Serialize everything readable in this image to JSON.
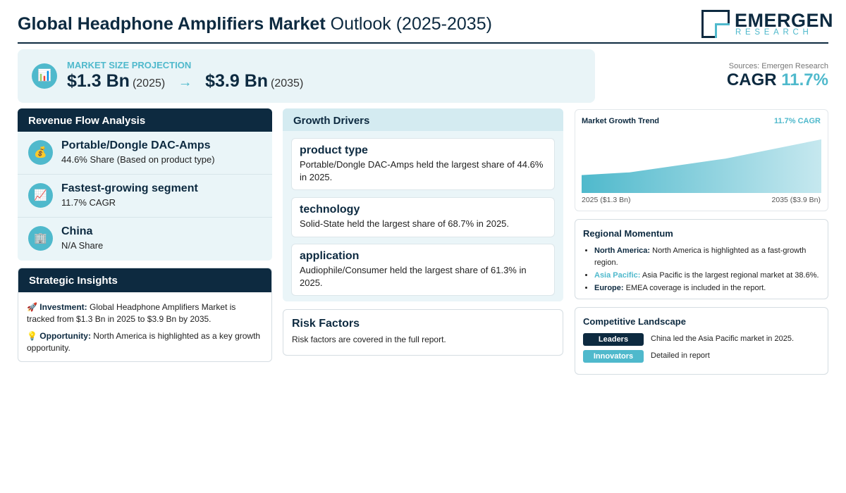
{
  "header": {
    "title_bold": "Global Headphone Amplifiers Market",
    "title_rest": "Outlook (2025-2035)",
    "logo_name": "EMERGEN",
    "logo_sub": "RESEARCH"
  },
  "projection": {
    "label": "MARKET SIZE PROJECTION",
    "icon": "bar-chart-icon",
    "start_value": "$1.3 Bn",
    "start_year": "(2025)",
    "arrow": "→",
    "end_value": "$3.9 Bn",
    "end_year": "(2035)"
  },
  "sources": "Sources: Emergen Research",
  "cagr": {
    "label": "CAGR",
    "value": "11.7%"
  },
  "revenue_flow": {
    "title": "Revenue Flow Analysis",
    "items": [
      {
        "icon": "money-bag-icon",
        "glyph": "💰",
        "title": "Portable/Dongle DAC-Amps",
        "sub": "44.6% Share (Based on product type)"
      },
      {
        "icon": "trend-up-icon",
        "glyph": "📈",
        "title": "Fastest-growing segment",
        "sub": "11.7% CAGR"
      },
      {
        "icon": "building-icon",
        "glyph": "🏢",
        "title": "China",
        "sub": "N/A Share"
      }
    ]
  },
  "strategic": {
    "title": "Strategic Insights",
    "items": [
      {
        "glyph": "🚀",
        "label": "Investment:",
        "text": "Global Headphone Amplifiers Market is tracked from $1.3 Bn in 2025 to $3.9 Bn by 2035."
      },
      {
        "glyph": "💡",
        "label": "Opportunity:",
        "text": "North America is highlighted as a key growth opportunity."
      }
    ]
  },
  "drivers": {
    "title": "Growth Drivers",
    "items": [
      {
        "title": "product type",
        "text": "Portable/Dongle DAC-Amps held the largest share of 44.6% in 2025."
      },
      {
        "title": "technology",
        "text": "Solid-State held the largest share of 68.7% in 2025."
      },
      {
        "title": "application",
        "text": "Audiophile/Consumer held the largest share of 61.3% in 2025."
      }
    ]
  },
  "risk": {
    "title": "Risk Factors",
    "text": "Risk factors are covered in the full report."
  },
  "trend": {
    "title": "Market Growth Trend",
    "cagr_label": "11.7% CAGR",
    "start_label": "2025 ($1.3 Bn)",
    "end_label": "2035 ($3.9 Bn)"
  },
  "chart_data": {
    "type": "area",
    "x": [
      2025,
      2027,
      2031,
      2035
    ],
    "values": [
      1.3,
      1.5,
      2.5,
      3.9
    ],
    "title": "Market Growth Trend",
    "xlabel": "",
    "ylabel": "",
    "ylim": [
      0,
      4.2
    ],
    "colors": [
      "#4fb9cc",
      "#c6e8ef"
    ]
  },
  "regional": {
    "title": "Regional Momentum",
    "items": [
      {
        "label": "North America:",
        "text": "North America is highlighted as a fast-growth region.",
        "accent": false
      },
      {
        "label": "Asia Pacific:",
        "text": "Asia Pacific is the largest regional market at 38.6%.",
        "accent": true
      },
      {
        "label": "Europe:",
        "text": "EMEA coverage is included in the report.",
        "accent": false
      }
    ]
  },
  "competitive": {
    "title": "Competitive Landscape",
    "rows": [
      {
        "pill": "Leaders",
        "text": "China led the Asia Pacific market in 2025."
      },
      {
        "pill": "Innovators",
        "text": "Detailed in report"
      }
    ]
  },
  "colors": {
    "navy": "#0d2a40",
    "teal": "#4fb9cc",
    "panel": "#eaf5f8"
  }
}
